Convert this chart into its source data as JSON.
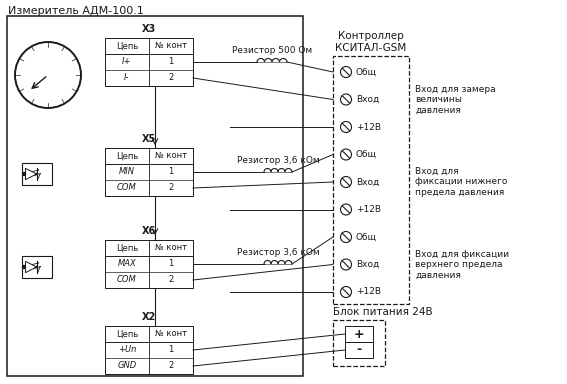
{
  "title": "Измеритель АДМ-100.1",
  "controller_label": "Контроллер\nКСИТАЛ-GSM",
  "power_label": "Блок питания 24В",
  "resistor1": "Резистор 500 Ом",
  "resistor2": "Резистор 3,6 кОм",
  "resistor3": "Резистор 3,6 кОм",
  "bg_color": "#ffffff",
  "lc": "#1a1a1a",
  "annotation1": "Вход для замера\nвеличины\nдавления",
  "annotation2": "Вход для\nфиксации нижнего\nпредела давления",
  "annotation3": "Вход для фиксации\nверхнего предела\nдавления",
  "x3_label": "X3",
  "x5_label": "X5",
  "x6_label": "X6",
  "x2_label": "X2",
  "col_tsep": "Цепь",
  "col_kont": "№ конт",
  "x3_rows": [
    [
      "I+",
      "1"
    ],
    [
      "I-",
      "2"
    ]
  ],
  "x5_rows": [
    [
      "MIN",
      "1"
    ],
    [
      "COM",
      "2"
    ]
  ],
  "x6_rows": [
    [
      "MAX",
      "1"
    ],
    [
      "COM",
      "2"
    ]
  ],
  "x2_rows": [
    [
      "+Un",
      "1"
    ],
    [
      "GND",
      "2"
    ]
  ],
  "ctrl_terminals": [
    "Общ",
    "Вход",
    "+12В",
    "Общ",
    "Вход",
    "+12В",
    "Общ",
    "Вход",
    "+12В"
  ],
  "pwr_terminals": [
    "+",
    "-"
  ]
}
